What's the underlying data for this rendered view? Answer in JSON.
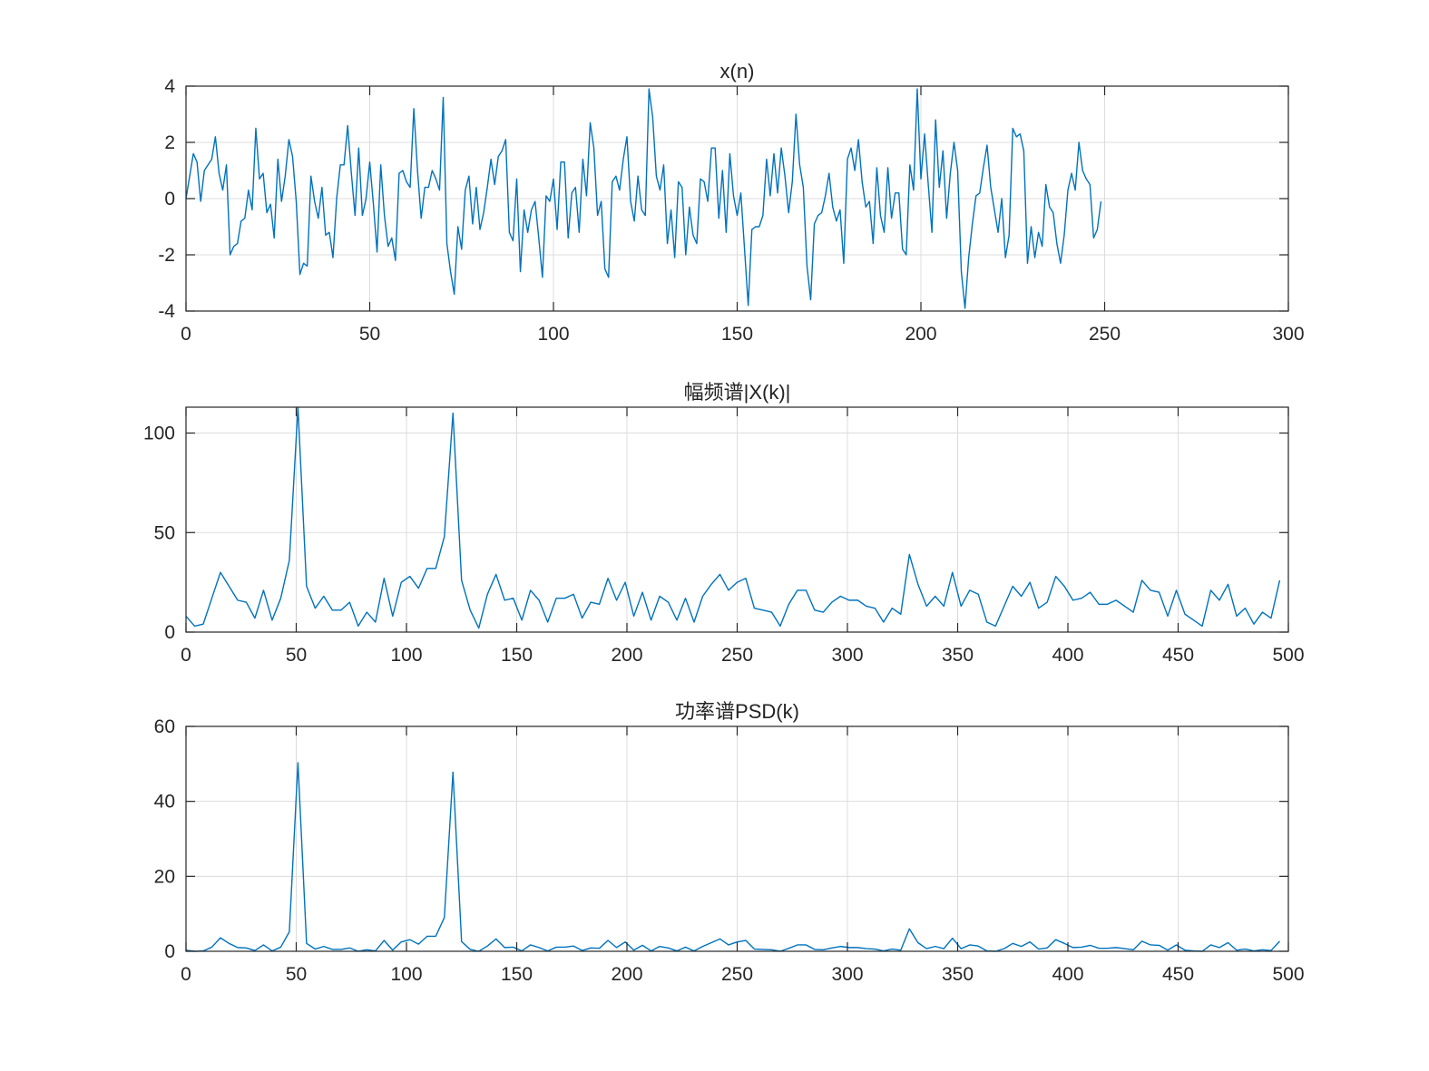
{
  "figure": {
    "line_color": "#0072BD",
    "grid_color": "#dcdcdc"
  },
  "chart_data": [
    {
      "type": "line",
      "title": "x(n)",
      "xlabel": "",
      "ylabel": "",
      "xlim": [
        0,
        300
      ],
      "ylim": [
        -4,
        4
      ],
      "xticks": [
        0,
        50,
        100,
        150,
        200,
        250,
        300
      ],
      "yticks": [
        -4,
        -2,
        0,
        2,
        4
      ],
      "grid": true,
      "series": [
        {
          "x_start": 0,
          "x_step": 1,
          "values": [
            0.0,
            0.8,
            1.6,
            1.3,
            -0.1,
            1.0,
            1.2,
            1.4,
            2.2,
            0.9,
            0.3,
            1.2,
            -2.0,
            -1.7,
            -1.6,
            -0.8,
            -0.7,
            0.3,
            -0.4,
            2.5,
            0.7,
            0.9,
            -0.5,
            -0.2,
            -1.4,
            1.4,
            -0.1,
            0.8,
            2.1,
            1.5,
            -0.1,
            -2.7,
            -2.3,
            -2.4,
            0.8,
            -0.1,
            -0.7,
            0.4,
            -1.3,
            -1.2,
            -2.1,
            0.0,
            1.2,
            1.2,
            2.6,
            0.9,
            -0.6,
            1.8,
            -0.6,
            0.0,
            1.3,
            -0.2,
            -1.9,
            1.2,
            -0.6,
            -1.7,
            -1.4,
            -2.2,
            0.9,
            1.0,
            0.6,
            0.4,
            3.2,
            1.0,
            -0.7,
            0.4,
            0.4,
            1.0,
            0.7,
            0.3,
            3.6,
            -1.6,
            -2.6,
            -3.4,
            -1.0,
            -1.8,
            0.3,
            0.8,
            -0.9,
            0.4,
            -1.1,
            -0.5,
            0.4,
            1.4,
            0.5,
            1.5,
            1.7,
            2.1,
            -1.2,
            -1.5,
            0.7,
            -2.6,
            -0.4,
            -1.2,
            -0.4,
            -0.1,
            -1.4,
            -2.8,
            0.1,
            -0.1,
            0.7,
            -1.1,
            1.3,
            1.3,
            -1.4,
            0.2,
            0.4,
            -1.2,
            1.4,
            0.1,
            2.7,
            1.8,
            -0.6,
            -0.1,
            -2.5,
            -2.8,
            0.6,
            0.8,
            0.3,
            1.4,
            2.2,
            -0.1,
            -0.8,
            0.8,
            -0.4,
            -0.6,
            3.9,
            2.9,
            0.8,
            0.3,
            1.2,
            -1.6,
            -0.4,
            -2.1,
            0.6,
            0.4,
            -2.0,
            -0.3,
            -1.3,
            -1.6,
            0.7,
            0.6,
            -0.1,
            1.8,
            1.8,
            -0.7,
            1.0,
            -1.2,
            1.6,
            0.1,
            -0.6,
            0.2,
            -1.8,
            -3.8,
            -1.1,
            -1.0,
            -1.0,
            -0.6,
            1.4,
            0.1,
            1.6,
            0.2,
            1.8,
            0.8,
            -0.5,
            0.6,
            3.0,
            1.2,
            0.4,
            -2.4,
            -3.6,
            -0.9,
            -0.6,
            -0.5,
            0.1,
            0.9,
            -0.3,
            -0.8,
            -0.4,
            -2.3,
            1.4,
            1.8,
            1.0,
            2.1,
            0.6,
            -0.3,
            -0.1,
            -1.6,
            1.1,
            -0.6,
            -1.2,
            1.1,
            -0.7,
            0.2,
            0.2,
            -1.8,
            -2.0,
            1.2,
            0.3,
            3.9,
            0.7,
            2.3,
            0.5,
            -1.2,
            2.8,
            0.4,
            1.7,
            -0.7,
            0.9,
            2.0,
            1.0,
            -2.6,
            -3.9,
            -2.1,
            -0.9,
            0.1,
            0.2,
            1.1,
            1.9,
            0.4,
            -0.4,
            -1.2,
            0.0,
            -2.1,
            -1.3,
            2.5,
            2.2,
            2.3,
            1.7,
            -2.3,
            -1.0,
            -2.1,
            -1.2,
            -1.7,
            0.5,
            -0.3,
            -0.5,
            -1.6,
            -2.3,
            -1.3,
            0.3,
            0.9,
            0.3,
            2.0,
            1.0,
            0.7,
            0.5,
            -1.4,
            -1.1,
            -0.1
          ]
        }
      ]
    },
    {
      "type": "line",
      "title": "幅频谱|X(k)|",
      "xlabel": "",
      "ylabel": "",
      "xlim": [
        0,
        500
      ],
      "ylim": [
        0,
        113
      ],
      "xticks": [
        0,
        50,
        100,
        150,
        200,
        250,
        300,
        350,
        400,
        450,
        500
      ],
      "yticks": [
        0,
        50,
        100
      ],
      "grid": true,
      "series": [
        {
          "x_start": 0,
          "x_step": 3.906,
          "values": [
            8,
            3,
            4,
            17,
            30,
            23,
            16,
            15,
            7,
            21,
            6,
            17,
            36,
            113,
            23,
            12,
            18,
            11,
            11,
            15,
            3,
            10,
            5,
            27,
            8,
            25,
            28,
            22,
            32,
            32,
            48,
            110,
            26,
            11,
            2,
            19,
            29,
            16,
            17,
            6,
            21,
            16,
            5,
            17,
            17,
            19,
            7,
            15,
            14,
            27,
            16,
            25,
            8,
            20,
            6,
            18,
            15,
            6,
            17,
            5,
            18,
            24,
            29,
            21,
            25,
            27,
            12,
            11,
            10,
            3,
            14,
            21,
            21,
            11,
            10,
            15,
            18,
            16,
            16,
            13,
            12,
            5,
            12,
            9,
            39,
            24,
            13,
            18,
            13,
            30,
            13,
            21,
            19,
            5,
            3,
            13,
            23,
            18,
            25,
            12,
            15,
            28,
            23,
            16,
            17,
            20,
            14,
            14,
            16,
            13,
            10,
            26,
            21,
            20,
            8,
            21,
            9,
            6,
            3,
            21,
            16,
            24,
            8,
            12,
            4,
            10,
            7,
            26
          ]
        }
      ]
    },
    {
      "type": "line",
      "title": "功率谱PSD(k)",
      "xlabel": "",
      "ylabel": "",
      "xlim": [
        0,
        500
      ],
      "ylim": [
        0,
        60
      ],
      "xticks": [
        0,
        50,
        100,
        150,
        200,
        250,
        300,
        350,
        400,
        450,
        500
      ],
      "yticks": [
        0,
        20,
        40,
        60
      ],
      "grid": true,
      "series": [
        {
          "x_start": 0,
          "x_step": 3.906,
          "values": [
            0.3,
            0.0,
            0.1,
            1.1,
            3.6,
            2.1,
            1.0,
            0.9,
            0.2,
            1.7,
            0.1,
            1.1,
            5.2,
            50.3,
            2.1,
            0.6,
            1.3,
            0.5,
            0.5,
            0.9,
            0.0,
            0.4,
            0.1,
            2.9,
            0.3,
            2.5,
            3.1,
            1.9,
            4.0,
            4.0,
            9.0,
            47.8,
            2.6,
            0.5,
            0.0,
            1.4,
            3.3,
            1.0,
            1.1,
            0.1,
            1.7,
            1.0,
            0.1,
            1.1,
            1.1,
            1.4,
            0.2,
            0.9,
            0.8,
            2.9,
            1.0,
            2.5,
            0.3,
            1.6,
            0.1,
            1.3,
            0.9,
            0.1,
            1.1,
            0.1,
            1.3,
            2.3,
            3.3,
            1.7,
            2.5,
            2.9,
            0.6,
            0.5,
            0.4,
            0.0,
            0.8,
            1.7,
            1.7,
            0.5,
            0.4,
            0.9,
            1.3,
            1.0,
            1.0,
            0.7,
            0.6,
            0.1,
            0.6,
            0.3,
            6.0,
            2.3,
            0.7,
            1.3,
            0.7,
            3.5,
            0.7,
            1.7,
            1.4,
            0.1,
            0.0,
            0.7,
            2.1,
            1.3,
            2.5,
            0.6,
            0.9,
            3.1,
            2.1,
            1.0,
            1.1,
            1.6,
            0.8,
            0.8,
            1.0,
            0.7,
            0.4,
            2.7,
            1.7,
            1.6,
            0.3,
            1.7,
            0.3,
            0.1,
            0.0,
            1.7,
            1.0,
            2.3,
            0.3,
            0.6,
            0.1,
            0.4,
            0.2,
            2.7
          ]
        }
      ]
    }
  ]
}
